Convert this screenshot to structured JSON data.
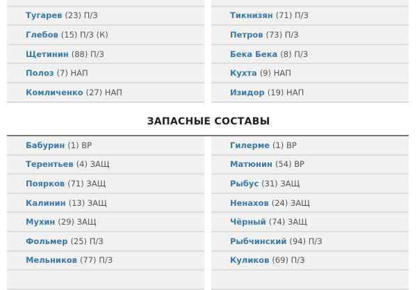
{
  "starting": {
    "left": [
      {
        "name": "Тугарев",
        "info": "(23) П/З"
      },
      {
        "name": "Глебов",
        "info": "(15) П/З (К)"
      },
      {
        "name": "Щетинин",
        "info": "(88) П/З"
      },
      {
        "name": "Полоз",
        "info": "(7) НАП"
      },
      {
        "name": "Комличенко",
        "info": "(27) НАП"
      }
    ],
    "right": [
      {
        "name": "Тикнизян",
        "info": "(71) П/З"
      },
      {
        "name": "Петров",
        "info": "(73) П/З"
      },
      {
        "name": "Бека Бека",
        "info": "(8) П/З"
      },
      {
        "name": "Кухта",
        "info": "(9) НАП"
      },
      {
        "name": "Изидор",
        "info": "(19) НАП"
      }
    ]
  },
  "reserves": {
    "title": "ЗАПАСНЫЕ СОСТАВЫ",
    "left": [
      {
        "name": "Бабурин",
        "info": "(1) ВР"
      },
      {
        "name": "Терентьев",
        "info": "(4) ЗАЩ"
      },
      {
        "name": "Поярков",
        "info": "(71) ЗАЩ"
      },
      {
        "name": "Калинин",
        "info": "(13) ЗАЩ"
      },
      {
        "name": "Мухин",
        "info": "(29) ЗАЩ"
      },
      {
        "name": "Фольмер",
        "info": "(25) П/З"
      },
      {
        "name": "Мельников",
        "info": "(77) П/З"
      }
    ],
    "right": [
      {
        "name": "Гилерме",
        "info": "(1) ВР"
      },
      {
        "name": "Матюнин",
        "info": "(54) ВР"
      },
      {
        "name": "Рыбус",
        "info": "(31) ЗАЩ"
      },
      {
        "name": "Ненахов",
        "info": "(24) ЗАЩ"
      },
      {
        "name": "Чёрный",
        "info": "(74) ЗАЩ"
      },
      {
        "name": "Рыбчинский",
        "info": "(94) П/З"
      },
      {
        "name": "Куликов",
        "info": "(69) П/З"
      }
    ]
  },
  "colors": {
    "name": "#3a78a8",
    "row_bg": "#f1f1f1"
  }
}
